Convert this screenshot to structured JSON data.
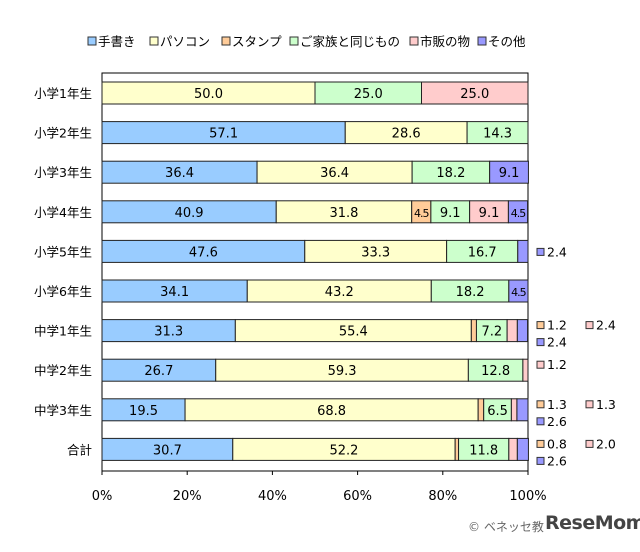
{
  "chart_data": {
    "type": "bar",
    "orientation": "horizontal",
    "stacked": true,
    "title": "",
    "xlabel": "",
    "ylabel": "",
    "xlim": [
      0,
      100
    ],
    "x_tick_labels": [
      "0%",
      "20%",
      "40%",
      "60%",
      "80%",
      "100%"
    ],
    "grid": false,
    "legend_position": "top",
    "categories": [
      "小学1年生",
      "小学2年生",
      "小学3年生",
      "小学4年生",
      "小学5年生",
      "小学6年生",
      "中学1年生",
      "中学2年生",
      "中学3年生",
      "合計"
    ],
    "series": [
      {
        "name": "手書き",
        "color": "#99CCFF",
        "values": [
          0,
          57.1,
          36.4,
          40.9,
          47.6,
          34.1,
          31.3,
          26.7,
          19.5,
          30.7
        ]
      },
      {
        "name": "パソコン",
        "color": "#FFFFCC",
        "values": [
          50.0,
          28.6,
          36.4,
          31.8,
          33.3,
          43.2,
          55.4,
          59.3,
          68.8,
          52.2
        ]
      },
      {
        "name": "スタンプ",
        "color": "#FFCC99",
        "values": [
          0,
          0,
          0,
          4.5,
          0,
          0,
          1.2,
          0,
          1.3,
          0.8
        ]
      },
      {
        "name": "ご家族と同じもの",
        "color": "#CCFFCC",
        "values": [
          25.0,
          14.3,
          18.2,
          9.1,
          16.7,
          18.2,
          7.2,
          12.8,
          6.5,
          11.8
        ]
      },
      {
        "name": "市販の物",
        "color": "#FFCCCC",
        "values": [
          25.0,
          0,
          0,
          9.1,
          0,
          0,
          2.4,
          1.2,
          1.3,
          2.0
        ]
      },
      {
        "name": "その他",
        "color": "#9999FF",
        "values": [
          0,
          0,
          9.1,
          4.5,
          2.4,
          4.5,
          2.4,
          0,
          2.6,
          2.6
        ]
      }
    ]
  },
  "footer": {
    "copyright": "© ベネッセ教",
    "logo": "ReseMom"
  }
}
